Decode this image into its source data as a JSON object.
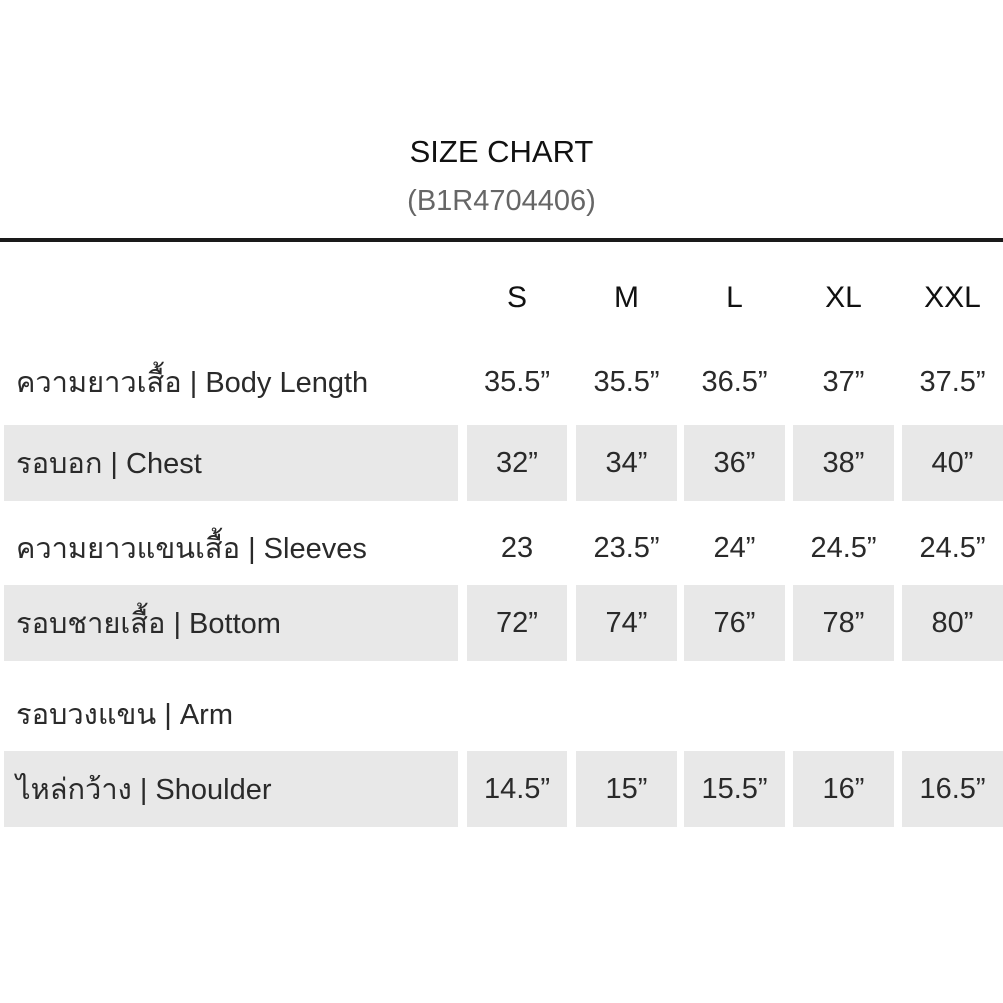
{
  "title": "SIZE CHART",
  "subtitle": "(B1R4704406)",
  "sizes": [
    "S",
    "M",
    "L",
    "XL",
    "XXL"
  ],
  "rows": [
    {
      "label": "ความยาวเสื้อ | Body Length",
      "values": [
        "35.5”",
        "35.5”",
        "36.5”",
        "37”",
        "37.5”"
      ],
      "shaded": false
    },
    {
      "label": "รอบอก | Chest",
      "values": [
        "32”",
        "34”",
        "36”",
        "38”",
        "40”"
      ],
      "shaded": true
    },
    {
      "label": "ความยาวแขนเสื้อ | Sleeves",
      "values": [
        "23",
        "23.5”",
        "24”",
        "24.5”",
        "24.5”"
      ],
      "shaded": false
    },
    {
      "label": "รอบชายเสื้อ | Bottom",
      "values": [
        "72”",
        "74”",
        "76”",
        "78”",
        "80”"
      ],
      "shaded": true
    },
    {
      "label": "รอบวงแขน | Arm",
      "values": [
        "",
        "",
        "",
        "",
        ""
      ],
      "shaded": false
    },
    {
      "label": "ไหล่กว้าง | Shoulder",
      "values": [
        "14.5”",
        "15”",
        "15.5”",
        "16”",
        "16.5”"
      ],
      "shaded": true
    }
  ],
  "colors": {
    "band": "#e8e8e8",
    "text": "#2a2a2a",
    "rule": "#1a1a1a"
  }
}
